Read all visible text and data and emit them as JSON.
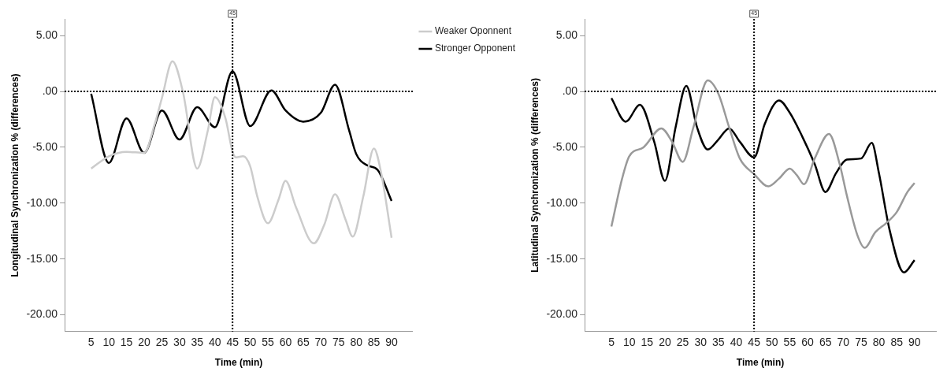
{
  "chart_data": [
    {
      "type": "line",
      "xlabel": "Time (min)",
      "ylabel": "Longitudinal Synchronization % (differences)",
      "legend": "top right",
      "marker": "none",
      "xlim": [
        -2.5,
        96
      ],
      "xticks": [
        5,
        10,
        15,
        20,
        25,
        30,
        35,
        40,
        45,
        50,
        55,
        60,
        65,
        70,
        75,
        80,
        85,
        90
      ],
      "ylim": [
        -21.5,
        6.5
      ],
      "yticks": [
        {
          "value": 5,
          "label": "5.00"
        },
        {
          "value": 0,
          "label": ".00"
        },
        {
          "value": -5,
          "label": "-5.00"
        },
        {
          "value": -10,
          "label": "-10.00"
        },
        {
          "value": -15,
          "label": "-15.00"
        },
        {
          "value": -20,
          "label": "-20.00"
        }
      ],
      "ref_lines": [
        {
          "axis": "x",
          "value": 45,
          "label": "45",
          "line_style": "dotted"
        },
        {
          "axis": "y",
          "value": 0,
          "line_style": "dotted"
        }
      ],
      "series": [
        {
          "name": "Weaker Oponnent",
          "color": "#cccccc",
          "x": [
            5,
            10,
            15,
            20,
            23,
            25,
            28,
            31,
            35,
            38,
            40,
            43,
            45,
            46,
            48,
            50,
            52,
            55,
            58,
            60,
            63,
            68,
            71,
            74,
            77,
            79,
            82,
            85,
            87,
            90
          ],
          "values": [
            -6.9,
            -5.8,
            -5.4,
            -5.5,
            -2.9,
            -0.6,
            2.7,
            -0.1,
            -6.9,
            -3.5,
            -0.5,
            -2.4,
            -5.4,
            -5.9,
            -5.8,
            -6.7,
            -9.4,
            -11.8,
            -9.7,
            -8.0,
            -10.4,
            -13.6,
            -11.9,
            -9.2,
            -11.5,
            -13.0,
            -9.4,
            -5.1,
            -7.2,
            -13.1
          ]
        },
        {
          "name": "Stronger Opponent",
          "color": "#000000",
          "x": [
            5,
            10,
            15,
            20,
            25,
            30,
            35,
            40,
            45,
            50,
            56,
            60,
            65,
            70,
            74,
            78,
            80,
            83,
            86,
            90
          ],
          "values": [
            -0.2,
            -6.4,
            -2.4,
            -5.5,
            -1.7,
            -4.3,
            -1.4,
            -3.2,
            1.8,
            -3.1,
            0.1,
            -1.7,
            -2.7,
            -1.9,
            0.6,
            -3.5,
            -5.6,
            -6.6,
            -7.0,
            -9.8
          ]
        }
      ]
    },
    {
      "type": "line",
      "xlabel": "Time (min)",
      "ylabel": "Latitudinal Synchronization % (differences)",
      "marker": "none",
      "xlim": [
        -2.5,
        96
      ],
      "xticks": [
        5,
        10,
        15,
        20,
        25,
        30,
        35,
        40,
        45,
        50,
        55,
        60,
        65,
        70,
        75,
        80,
        85,
        90
      ],
      "ylim": [
        -21.5,
        6.5
      ],
      "yticks": [
        {
          "value": 5,
          "label": "5.00"
        },
        {
          "value": 0,
          "label": ".00"
        },
        {
          "value": -5,
          "label": "-5.00"
        },
        {
          "value": -10,
          "label": "-10.00"
        },
        {
          "value": -15,
          "label": "-15.00"
        },
        {
          "value": -20,
          "label": "-20.00"
        }
      ],
      "ref_lines": [
        {
          "axis": "x",
          "value": 45,
          "label": "45",
          "line_style": "dotted"
        },
        {
          "axis": "y",
          "value": 0,
          "line_style": "dotted"
        }
      ],
      "series": [
        {
          "color": "#999999",
          "x": [
            5,
            8,
            10,
            14,
            19,
            22,
            25,
            28,
            32,
            35,
            38,
            41,
            45,
            49,
            52,
            55,
            57,
            59,
            62,
            66,
            69,
            71,
            74,
            76,
            79,
            82,
            85,
            88,
            90
          ],
          "values": [
            -12.1,
            -7.8,
            -5.8,
            -5.0,
            -3.3,
            -4.5,
            -6.3,
            -3.2,
            1.0,
            -0.2,
            -3.2,
            -6.0,
            -7.4,
            -8.5,
            -7.8,
            -6.9,
            -7.5,
            -8.3,
            -6.0,
            -3.8,
            -6.5,
            -9.3,
            -12.9,
            -14.0,
            -12.6,
            -11.8,
            -10.8,
            -9.0,
            -8.2
          ]
        },
        {
          "color": "#000000",
          "x": [
            5,
            9,
            13,
            17,
            20,
            23,
            26,
            29,
            32,
            35,
            38,
            41,
            45,
            48,
            52,
            55,
            58,
            62,
            65,
            68,
            71,
            75,
            78,
            80,
            83,
            87,
            90
          ],
          "values": [
            -0.6,
            -2.7,
            -1.2,
            -4.5,
            -8.0,
            -3.2,
            0.5,
            -3.2,
            -5.2,
            -4.3,
            -3.3,
            -4.5,
            -5.9,
            -2.9,
            -0.8,
            -1.9,
            -3.7,
            -6.5,
            -9.0,
            -7.3,
            -6.1,
            -6.0,
            -4.6,
            -7.3,
            -12.4,
            -16.2,
            -15.1
          ]
        }
      ]
    }
  ]
}
